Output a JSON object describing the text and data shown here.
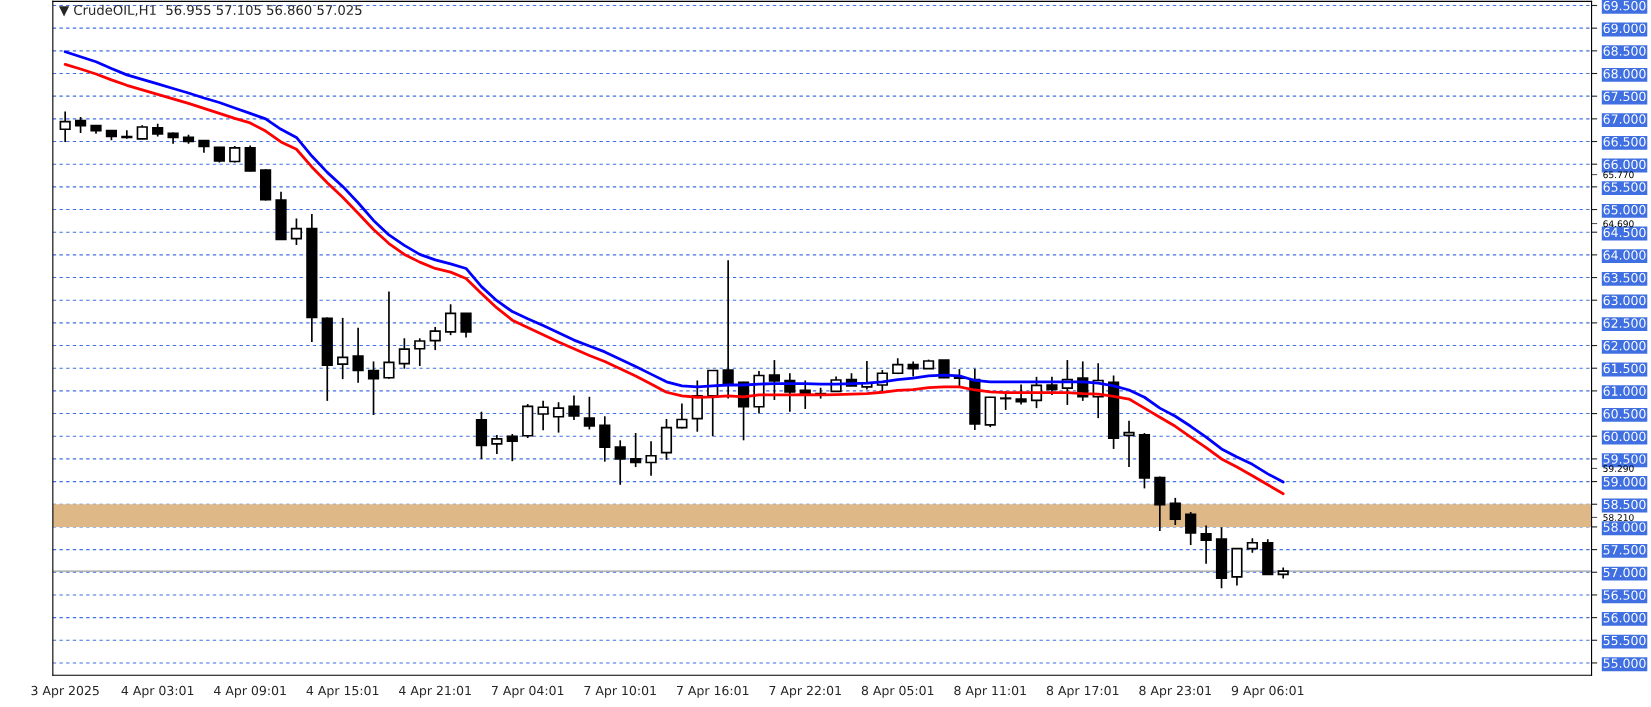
{
  "chart_data": {
    "type": "candlestick",
    "title": "▼ CrudeOIL,H1  56.955 57.105 56.860 57.025",
    "categories": [
      "3 Apr 2025",
      null,
      null,
      null,
      null,
      null,
      "4 Apr 03:01",
      null,
      null,
      null,
      null,
      null,
      "4 Apr 09:01",
      null,
      null,
      null,
      null,
      null,
      "4 Apr 15:01",
      null,
      null,
      null,
      null,
      null,
      "4 Apr 21:01",
      null,
      null,
      null,
      null,
      null,
      "7 Apr 04:01",
      null,
      null,
      null,
      null,
      null,
      "7 Apr 10:01",
      null,
      null,
      null,
      null,
      null,
      "7 Apr 16:01",
      null,
      null,
      null,
      null,
      null,
      "7 Apr 22:01",
      null,
      null,
      null,
      null,
      null,
      "8 Apr 05:01",
      null,
      null,
      null,
      null,
      null,
      "8 Apr 11:01",
      null,
      null,
      null,
      null,
      null,
      "8 Apr 17:01",
      null,
      null,
      null,
      null,
      null,
      "8 Apr 23:01",
      null,
      null,
      null,
      null,
      null,
      "9 Apr 06:01",
      null
    ],
    "ohlc": [
      [
        66.77,
        67.16,
        66.49,
        66.94
      ],
      [
        66.96,
        67.04,
        66.69,
        66.85
      ],
      [
        66.85,
        66.85,
        66.67,
        66.74
      ],
      [
        66.74,
        66.74,
        66.53,
        66.61
      ],
      [
        66.61,
        66.75,
        66.56,
        66.59
      ],
      [
        66.56,
        66.86,
        66.55,
        66.82
      ],
      [
        66.8,
        66.89,
        66.61,
        66.67
      ],
      [
        66.68,
        66.7,
        66.45,
        66.59
      ],
      [
        66.59,
        66.65,
        66.45,
        66.5
      ],
      [
        66.52,
        66.52,
        66.25,
        66.39
      ],
      [
        66.37,
        66.37,
        66.04,
        66.07
      ],
      [
        66.06,
        66.4,
        66.04,
        66.36
      ],
      [
        66.36,
        66.41,
        65.84,
        65.85
      ],
      [
        65.87,
        65.89,
        65.2,
        65.22
      ],
      [
        65.21,
        65.39,
        64.33,
        64.34
      ],
      [
        64.36,
        64.8,
        64.22,
        64.58
      ],
      [
        64.58,
        64.9,
        62.08,
        62.62
      ],
      [
        62.6,
        62.62,
        60.78,
        61.57
      ],
      [
        61.59,
        62.61,
        61.26,
        61.74
      ],
      [
        61.77,
        62.39,
        61.18,
        61.45
      ],
      [
        61.45,
        61.65,
        60.47,
        61.27
      ],
      [
        61.29,
        63.19,
        61.27,
        61.63
      ],
      [
        61.6,
        62.16,
        61.49,
        61.92
      ],
      [
        61.93,
        62.16,
        61.55,
        62.1
      ],
      [
        62.11,
        62.41,
        61.9,
        62.32
      ],
      [
        62.3,
        62.91,
        62.23,
        62.71
      ],
      [
        62.71,
        62.71,
        62.18,
        62.3
      ],
      [
        60.36,
        60.54,
        59.5,
        59.8
      ],
      [
        59.83,
        60.03,
        59.61,
        59.94
      ],
      [
        60.0,
        60.05,
        59.45,
        59.89
      ],
      [
        60.01,
        60.71,
        59.96,
        60.66
      ],
      [
        60.49,
        60.78,
        60.13,
        60.64
      ],
      [
        60.43,
        60.75,
        60.08,
        60.62
      ],
      [
        60.66,
        60.9,
        60.36,
        60.45
      ],
      [
        60.4,
        60.87,
        60.15,
        60.23
      ],
      [
        60.24,
        60.44,
        59.44,
        59.76
      ],
      [
        59.76,
        59.91,
        58.93,
        59.5
      ],
      [
        59.5,
        60.07,
        59.32,
        59.42
      ],
      [
        59.42,
        59.89,
        59.13,
        59.57
      ],
      [
        59.64,
        60.38,
        59.48,
        60.19
      ],
      [
        60.19,
        60.72,
        60.17,
        60.37
      ],
      [
        60.39,
        61.23,
        60.1,
        60.89
      ],
      [
        60.89,
        61.45,
        60.0,
        61.45
      ],
      [
        61.46,
        63.88,
        60.83,
        61.13
      ],
      [
        61.19,
        61.2,
        59.91,
        60.65
      ],
      [
        60.65,
        61.44,
        60.5,
        61.34
      ],
      [
        61.35,
        61.68,
        60.8,
        61.22
      ],
      [
        61.23,
        61.39,
        60.54,
        60.98
      ],
      [
        61.01,
        61.23,
        60.6,
        60.93
      ],
      [
        60.94,
        61.07,
        60.83,
        60.92
      ],
      [
        60.99,
        61.32,
        60.98,
        61.24
      ],
      [
        61.25,
        61.39,
        61.11,
        61.11
      ],
      [
        61.09,
        61.66,
        61.03,
        61.17
      ],
      [
        61.13,
        61.46,
        60.99,
        61.39
      ],
      [
        61.39,
        61.72,
        61.37,
        61.58
      ],
      [
        61.58,
        61.65,
        61.32,
        61.49
      ],
      [
        61.49,
        61.69,
        61.49,
        61.66
      ],
      [
        61.68,
        61.68,
        61.29,
        61.29
      ],
      [
        61.31,
        61.48,
        61.11,
        61.28
      ],
      [
        61.25,
        61.49,
        60.14,
        60.27
      ],
      [
        60.25,
        60.87,
        60.2,
        60.86
      ],
      [
        60.83,
        60.99,
        60.58,
        60.84
      ],
      [
        60.82,
        61.14,
        60.7,
        60.76
      ],
      [
        60.79,
        61.31,
        60.62,
        61.12
      ],
      [
        61.13,
        61.31,
        60.91,
        61.03
      ],
      [
        61.06,
        61.68,
        60.69,
        61.25
      ],
      [
        61.28,
        61.65,
        60.78,
        60.87
      ],
      [
        60.87,
        61.61,
        60.4,
        61.23
      ],
      [
        61.19,
        61.34,
        59.72,
        59.96
      ],
      [
        60.02,
        60.34,
        59.32,
        60.08
      ],
      [
        60.03,
        60.07,
        58.85,
        59.08
      ],
      [
        59.09,
        59.11,
        57.91,
        58.49
      ],
      [
        58.52,
        58.64,
        58.04,
        58.17
      ],
      [
        58.28,
        58.33,
        57.6,
        57.87
      ],
      [
        57.85,
        58.03,
        57.19,
        57.71
      ],
      [
        57.73,
        57.99,
        56.65,
        56.87
      ],
      [
        56.9,
        57.52,
        56.71,
        57.52
      ],
      [
        57.52,
        57.75,
        57.43,
        57.65
      ],
      [
        57.65,
        57.73,
        56.95,
        56.95
      ],
      [
        56.955,
        57.105,
        56.86,
        57.025
      ]
    ],
    "series": [
      {
        "type": "line",
        "color": "#0000ff",
        "values": [
          68.48,
          68.37,
          68.26,
          68.11,
          67.97,
          67.87,
          67.77,
          67.67,
          67.57,
          67.46,
          67.36,
          67.24,
          67.12,
          67.0,
          66.77,
          66.59,
          66.18,
          65.82,
          65.51,
          65.15,
          64.76,
          64.44,
          64.21,
          64.01,
          63.89,
          63.8,
          63.7,
          63.3,
          62.99,
          62.75,
          62.59,
          62.44,
          62.28,
          62.12,
          61.99,
          61.86,
          61.7,
          61.54,
          61.37,
          61.2,
          61.11,
          61.09,
          61.11,
          61.13,
          61.13,
          61.15,
          61.16,
          61.16,
          61.16,
          61.15,
          61.15,
          61.16,
          61.17,
          61.2,
          61.25,
          61.28,
          61.33,
          61.35,
          61.33,
          61.23,
          61.2,
          61.2,
          61.2,
          61.2,
          61.2,
          61.2,
          61.2,
          61.17,
          61.11,
          61.02,
          60.86,
          60.62,
          60.44,
          60.22,
          59.98,
          59.72,
          59.54,
          59.38,
          59.17,
          58.99
        ]
      },
      {
        "type": "line",
        "color": "#ff0000",
        "values": [
          68.2,
          68.1,
          67.99,
          67.86,
          67.74,
          67.64,
          67.54,
          67.44,
          67.34,
          67.23,
          67.12,
          67.01,
          66.91,
          66.73,
          66.49,
          66.33,
          65.94,
          65.59,
          65.27,
          64.92,
          64.56,
          64.25,
          64.01,
          63.84,
          63.7,
          63.62,
          63.48,
          63.15,
          62.83,
          62.56,
          62.4,
          62.24,
          62.08,
          61.93,
          61.78,
          61.65,
          61.49,
          61.33,
          61.15,
          60.97,
          60.89,
          60.86,
          60.87,
          60.89,
          60.87,
          60.91,
          60.91,
          60.91,
          60.92,
          60.91,
          60.92,
          60.93,
          60.94,
          60.97,
          61.01,
          61.03,
          61.07,
          61.09,
          61.09,
          61.02,
          60.98,
          60.96,
          60.96,
          60.96,
          60.96,
          60.96,
          60.94,
          60.93,
          60.88,
          60.82,
          60.62,
          60.42,
          60.22,
          59.98,
          59.75,
          59.5,
          59.32,
          59.13,
          58.93,
          58.73
        ]
      }
    ],
    "ylim": [
      54.73,
      69.59
    ],
    "yticks": [
      {
        "value": 55.0,
        "label": "55.000"
      },
      {
        "value": 55.5,
        "label": "55.500"
      },
      {
        "value": 56.0,
        "label": "56.000"
      },
      {
        "value": 56.5,
        "label": "56.500"
      },
      {
        "value": 57.0,
        "label": "57.000"
      },
      {
        "value": 57.5,
        "label": "57.500"
      },
      {
        "value": 58.0,
        "label": "58.000"
      },
      {
        "value": 58.5,
        "label": "58.500"
      },
      {
        "value": 59.0,
        "label": "59.000"
      },
      {
        "value": 59.5,
        "label": "59.500"
      },
      {
        "value": 60.0,
        "label": "60.000"
      },
      {
        "value": 60.5,
        "label": "60.500"
      },
      {
        "value": 61.0,
        "label": "61.000"
      },
      {
        "value": 61.5,
        "label": "61.500"
      },
      {
        "value": 62.0,
        "label": "62.000"
      },
      {
        "value": 62.5,
        "label": "62.500"
      },
      {
        "value": 63.0,
        "label": "63.000"
      },
      {
        "value": 63.5,
        "label": "63.500"
      },
      {
        "value": 64.0,
        "label": "64.000"
      },
      {
        "value": 64.5,
        "label": "64.500"
      },
      {
        "value": 65.0,
        "label": "65.000"
      },
      {
        "value": 65.5,
        "label": "65.500"
      },
      {
        "value": 66.0,
        "label": "66.000"
      },
      {
        "value": 66.5,
        "label": "66.500"
      },
      {
        "value": 67.0,
        "label": "67.000"
      },
      {
        "value": 67.5,
        "label": "67.500"
      },
      {
        "value": 68.0,
        "label": "68.000"
      },
      {
        "value": 68.5,
        "label": "68.500"
      },
      {
        "value": 69.0,
        "label": "69.000"
      },
      {
        "value": 69.5,
        "label": "69.500"
      },
      {
        "value": 65.77,
        "label": "65.770"
      },
      {
        "value": 64.69,
        "label": "64.690"
      },
      {
        "value": 59.29,
        "label": "59.290"
      },
      {
        "value": 58.21,
        "label": "58.210"
      }
    ],
    "grid": "y",
    "bands": [
      {
        "axis": "y",
        "from": 58.0,
        "to": 58.5,
        "color": "#deb887"
      }
    ],
    "ref_lines": [
      {
        "axis": "y",
        "value": 57.025,
        "color": "#a0a0a0",
        "line_style": "solid"
      }
    ]
  }
}
